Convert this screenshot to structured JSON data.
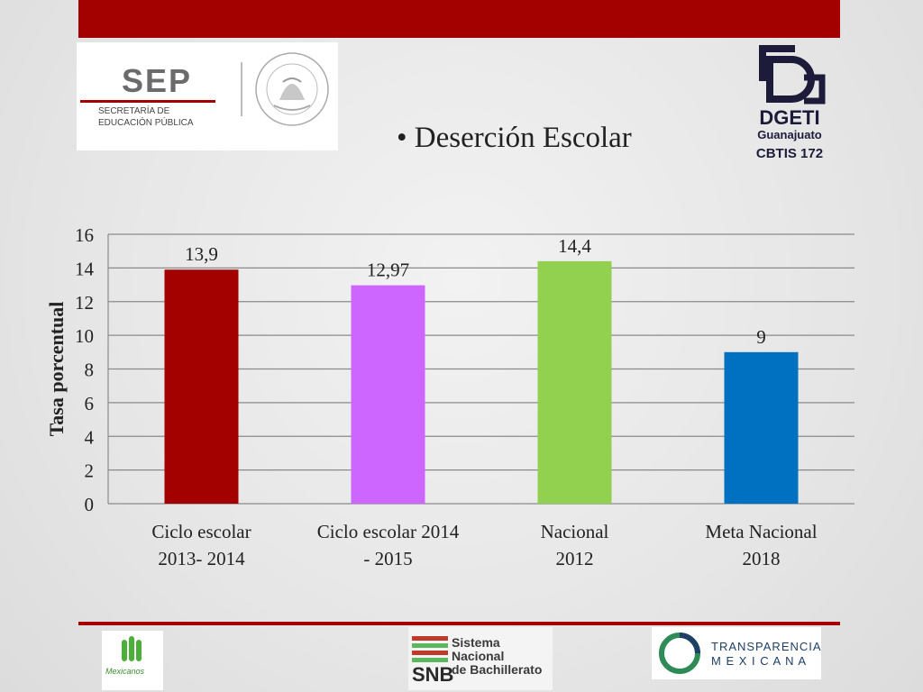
{
  "header": {
    "sep_name": "SEP",
    "sep_subtitle": "SECRETARÍA DE\nEDUCACIÓN PÚBLICA",
    "seal_text": "ESTADOS UNIDOS MEXICANOS",
    "dgeti_name": "DGETI",
    "dgeti_state": "Guanajuato",
    "dgeti_school": "CBTIS 172"
  },
  "slide_title": "• Deserción Escolar",
  "colors": {
    "brand_red": "#a30000"
  },
  "chart_data": {
    "type": "bar",
    "categories": [
      [
        "Ciclo escolar",
        "2013- 2014"
      ],
      [
        "Ciclo escolar 2014",
        "- 2015"
      ],
      [
        "Nacional",
        "2012"
      ],
      [
        "Meta Nacional",
        "2018"
      ]
    ],
    "values": [
      13.9,
      12.97,
      14.4,
      9
    ],
    "value_labels": [
      "13,9",
      "12,97",
      "14,4",
      "9"
    ],
    "bar_colors": [
      "#a30000",
      "#cc66ff",
      "#92d050",
      "#0070c0"
    ],
    "ylabel": "Tasa porcentual",
    "xlabel": "",
    "ylim": [
      0,
      16
    ],
    "yticks": [
      0,
      2,
      4,
      6,
      8,
      10,
      12,
      14,
      16
    ],
    "grid": true,
    "legend": "none"
  },
  "footer": {
    "mexicanos": "Mexicanos",
    "snb_name": "Sistema Nacional\nde Bachillerato",
    "snb_abbr": "SNB",
    "transparencia": "TRANSPARENCIA\nM E X I C A N A"
  }
}
